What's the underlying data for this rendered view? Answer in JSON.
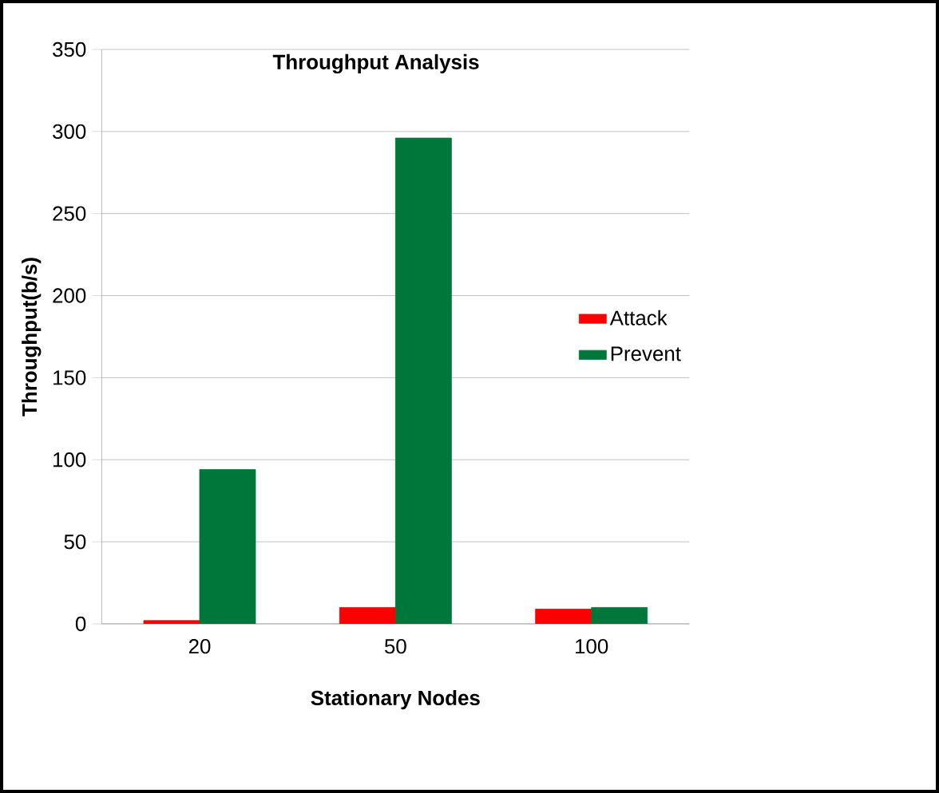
{
  "chart_data": {
    "type": "bar",
    "title": "Throughput Analysis",
    "xlabel": "Stationary Nodes",
    "ylabel": "Throughput(b/s)",
    "categories": [
      "20",
      "50",
      "100"
    ],
    "series": [
      {
        "name": "Attack",
        "color": "#ff0000",
        "values": [
          2,
          10,
          9
        ]
      },
      {
        "name": "Prevent",
        "color": "#00773a",
        "values": [
          94,
          296,
          10
        ]
      }
    ],
    "ylim": [
      0,
      350
    ],
    "yticks": [
      0,
      50,
      100,
      150,
      200,
      250,
      300,
      350
    ],
    "grid": "y",
    "legend": "right"
  }
}
